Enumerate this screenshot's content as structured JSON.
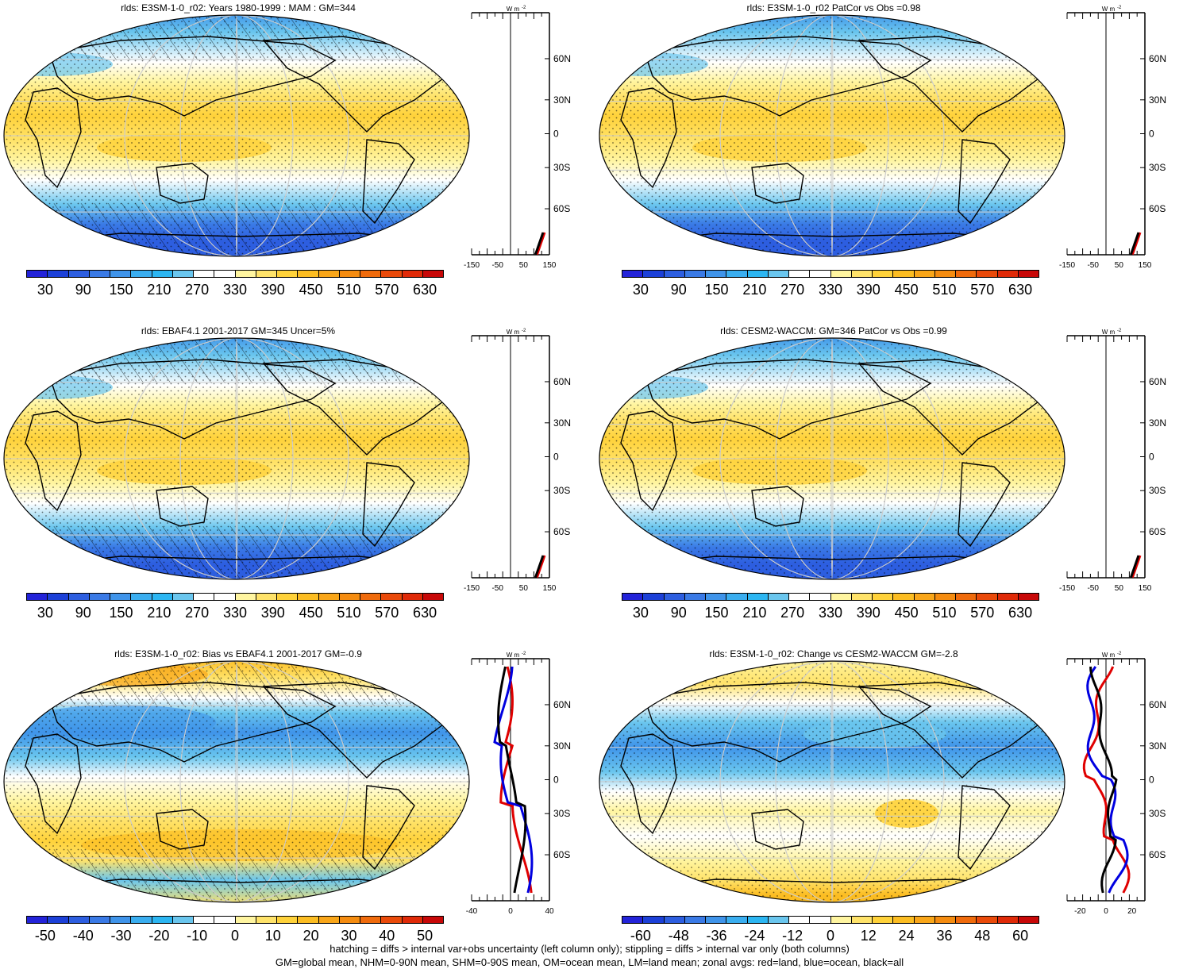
{
  "panels": [
    {
      "id": "p1",
      "title": "rlds: E3SM-1-0_r02: Years 1980-1999 : MAM : GM=344",
      "kind": "abs",
      "scale": "abs",
      "hatch": true,
      "stipple": true,
      "zonal_lines": [
        "red",
        "black"
      ]
    },
    {
      "id": "p2",
      "title": "rlds: E3SM-1-0_r02 PatCor vs Obs =0.98",
      "kind": "abs",
      "scale": "abs",
      "hatch": false,
      "stipple": true,
      "zonal_lines": [
        "red",
        "black"
      ]
    },
    {
      "id": "p3",
      "title": "rlds: EBAF4.1 2001-2017 GM=345 Uncer=5%",
      "kind": "abs",
      "scale": "abs",
      "hatch": true,
      "stipple": true,
      "zonal_lines": [
        "red",
        "black"
      ]
    },
    {
      "id": "p4",
      "title": "rlds: CESM2-WACCM: GM=346 PatCor vs Obs =0.99",
      "kind": "abs",
      "scale": "abs",
      "hatch": false,
      "stipple": true,
      "zonal_lines": [
        "red",
        "black"
      ]
    },
    {
      "id": "p5",
      "title": "rlds: E3SM-1-0_r02: Bias vs EBAF4.1 2001-2017 GM=-0.9",
      "kind": "bias",
      "scale": "bias",
      "hatch": true,
      "stipple": true,
      "zonal_lines": [
        "red",
        "blue",
        "black"
      ]
    },
    {
      "id": "p6",
      "title": "rlds: E3SM-1-0_r02: Change vs CESM2-WACCM GM=-2.8",
      "kind": "change",
      "scale": "change",
      "hatch": false,
      "stipple": true,
      "zonal_lines": [
        "red",
        "blue",
        "black"
      ]
    }
  ],
  "scales": {
    "abs": {
      "labels": [
        "30",
        "90",
        "150",
        "210",
        "270",
        "330",
        "390",
        "450",
        "510",
        "570",
        "630"
      ],
      "zonal_ticks": [
        "-150",
        "-50",
        "50",
        "150"
      ],
      "zonal_range": [
        -150,
        150
      ]
    },
    "bias": {
      "labels": [
        "-50",
        "-40",
        "-30",
        "-20",
        "-10",
        "0",
        "10",
        "20",
        "30",
        "40",
        "50"
      ],
      "zonal_ticks": [
        "-40",
        "0",
        "40"
      ],
      "zonal_range": [
        -40,
        40
      ]
    },
    "change": {
      "labels": [
        "-60",
        "-48",
        "-36",
        "-24",
        "-12",
        "0",
        "12",
        "24",
        "36",
        "48",
        "60"
      ],
      "zonal_ticks": [
        "-20",
        "0",
        "20"
      ],
      "zonal_range": [
        -30,
        30
      ]
    }
  },
  "colors": [
    "#2323d9",
    "#1c40d8",
    "#2d5ee0",
    "#3a7ae6",
    "#3f94ea",
    "#3aaef0",
    "#2cb6f2",
    "#6ac6ee",
    "#ffffff",
    "#ffffff",
    "#fff5a0",
    "#ffe36a",
    "#ffd23a",
    "#fcbd22",
    "#f9a619",
    "#f58c10",
    "#f06b0c",
    "#ea4a0a",
    "#e02a08",
    "#c80808"
  ],
  "zonal_unit_base": "W m",
  "zonal_unit_exp": "-2",
  "lat_labels": [
    "60N",
    "30N",
    "0",
    "30S",
    "60S"
  ],
  "footer_line1": "hatching = diffs > internal var+obs uncertainty (left column only); stippling = diffs > internal var only (both columns)",
  "footer_line2": "GM=global mean, NHM=0-90N mean, SHM=0-90S mean, OM=ocean mean, LM=land mean; zonal avgs: red=land, blue=ocean, black=all"
}
